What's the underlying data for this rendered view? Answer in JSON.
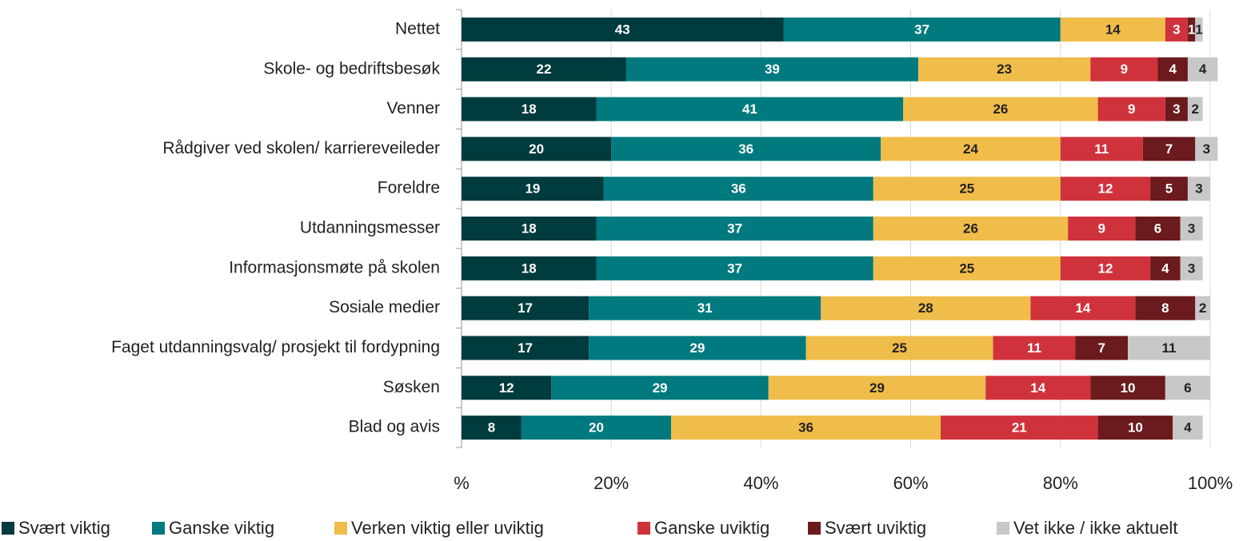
{
  "chart_data": {
    "type": "bar",
    "orientation": "horizontal",
    "stacked": true,
    "categories": [
      "Nettet",
      "Skole- og bedriftsbesøk",
      "Venner",
      "Rådgiver ved skolen/ karriereveileder",
      "Foreldre",
      "Utdanningsmesser",
      "Informasjonsmøte på skolen",
      "Sosiale medier",
      "Faget utdanningsvalg/ prosjekt til fordypning",
      "Søsken",
      "Blad og avis"
    ],
    "series": [
      {
        "name": "Svært viktig",
        "color": "#003b3e",
        "label_color": "#ffffff",
        "values": [
          43,
          22,
          18,
          20,
          19,
          18,
          18,
          17,
          17,
          12,
          8
        ]
      },
      {
        "name": "Ganske viktig",
        "color": "#007a7e",
        "label_color": "#ffffff",
        "values": [
          37,
          39,
          41,
          36,
          36,
          37,
          37,
          31,
          29,
          29,
          20
        ]
      },
      {
        "name": "Verken viktig eller uviktig",
        "color": "#f0bd4a",
        "label_color": "#222222",
        "values": [
          14,
          23,
          26,
          24,
          25,
          26,
          25,
          28,
          25,
          29,
          36
        ]
      },
      {
        "name": "Ganske uviktig",
        "color": "#d0323c",
        "label_color": "#ffffff",
        "values": [
          3,
          9,
          9,
          11,
          12,
          9,
          12,
          14,
          11,
          14,
          21
        ]
      },
      {
        "name": "Svært uviktig",
        "color": "#6b1a1e",
        "label_color": "#ffffff",
        "values": [
          1,
          4,
          3,
          7,
          5,
          6,
          4,
          8,
          7,
          10,
          10
        ]
      },
      {
        "name": "Vet ikke / ikke aktuelt",
        "color": "#c8c8c8",
        "label_color": "#222222",
        "values": [
          1,
          4,
          2,
          3,
          3,
          3,
          3,
          2,
          11,
          6,
          4
        ]
      }
    ],
    "xlim": [
      0,
      100
    ],
    "xticks": [
      {
        "value": 0,
        "label": "%"
      },
      {
        "value": 20,
        "label": "20%"
      },
      {
        "value": 40,
        "label": "40%"
      },
      {
        "value": 60,
        "label": "60%"
      },
      {
        "value": 80,
        "label": "80%"
      },
      {
        "value": 100,
        "label": "100%"
      }
    ],
    "grid": true,
    "legend": "bottom"
  }
}
